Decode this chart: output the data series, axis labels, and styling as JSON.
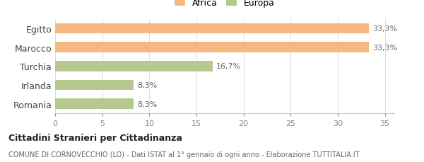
{
  "categories": [
    "Egitto",
    "Marocco",
    "Turchia",
    "Irlanda",
    "Romania"
  ],
  "values": [
    33.3,
    33.3,
    16.7,
    8.3,
    8.3
  ],
  "labels": [
    "33,3%",
    "33,3%",
    "16,7%",
    "8,3%",
    "8,3%"
  ],
  "colors": [
    "#f5b97f",
    "#f5b97f",
    "#b5c98e",
    "#b5c98e",
    "#b5c98e"
  ],
  "legend": [
    {
      "label": "Africa",
      "color": "#f5b97f"
    },
    {
      "label": "Europa",
      "color": "#b5c98e"
    }
  ],
  "xlim": [
    0,
    36
  ],
  "xticks": [
    0,
    5,
    10,
    15,
    20,
    25,
    30,
    35
  ],
  "title_bold": "Cittadini Stranieri per Cittadinanza",
  "subtitle": "COMUNE DI CORNOVECCHIO (LO) - Dati ISTAT al 1° gennaio di ogni anno - Elaborazione TUTTITALIA.IT",
  "background_color": "#ffffff",
  "bar_height": 0.55
}
